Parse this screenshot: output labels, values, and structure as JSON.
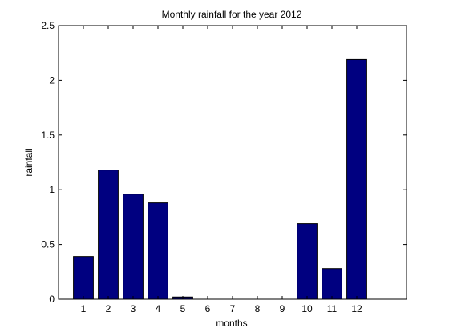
{
  "chart_data": {
    "type": "bar",
    "title": "Monthly rainfall for the year 2012",
    "xlabel": "months",
    "ylabel": "rainfall",
    "categories": [
      "1",
      "2",
      "3",
      "4",
      "5",
      "6",
      "7",
      "8",
      "9",
      "10",
      "11",
      "12"
    ],
    "values": [
      0.39,
      1.18,
      0.96,
      0.88,
      0.02,
      0,
      0,
      0,
      0,
      0.69,
      0.28,
      2.19
    ],
    "ylim": [
      0,
      2.5
    ],
    "xlim": [
      0,
      14
    ],
    "yticks": [
      "0",
      "0.5",
      "1",
      "1.5",
      "2",
      "2.5"
    ],
    "grid": false,
    "legend": "none",
    "colors": {
      "bar_fill": "#000080",
      "bar_edge": "#000000",
      "axes": "#000000",
      "background": "#ffffff"
    }
  }
}
